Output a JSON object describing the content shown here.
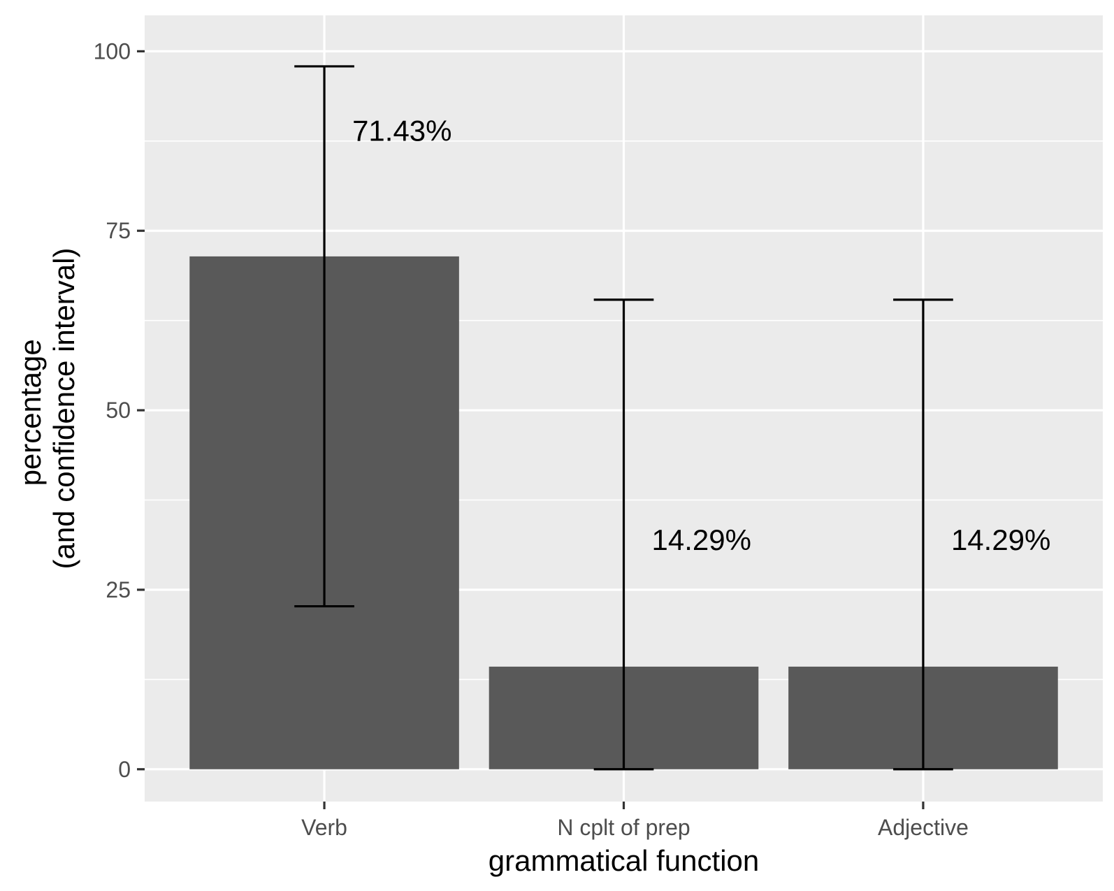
{
  "chart_data": {
    "type": "bar",
    "categories": [
      "Verb",
      "N cplt of prep",
      "Adjective"
    ],
    "values": [
      71.43,
      14.29,
      14.29
    ],
    "bar_labels": [
      "71.43%",
      "14.29%",
      "14.29%"
    ],
    "error_bars": [
      {
        "low": 22.7,
        "high": 97.9
      },
      {
        "low": 0.0,
        "high": 65.4
      },
      {
        "low": 0.0,
        "high": 65.4
      }
    ],
    "title": "",
    "xlabel": "grammatical function",
    "ylabel_lines": [
      "percentage",
      "(and confidence interval)"
    ],
    "ylim": [
      -4.5,
      105
    ],
    "y_ticks": [
      0,
      25,
      50,
      75,
      100
    ],
    "y_tick_labels": [
      "0",
      "25",
      "50",
      "75",
      "100"
    ],
    "grid": true,
    "legend": "none",
    "colors": {
      "panel_background": "#ebebeb",
      "grid": "#ffffff",
      "bar_fill": "#595959",
      "error_bar": "#000000",
      "tick": "#333333",
      "tick_label": "#4d4d4d"
    }
  }
}
